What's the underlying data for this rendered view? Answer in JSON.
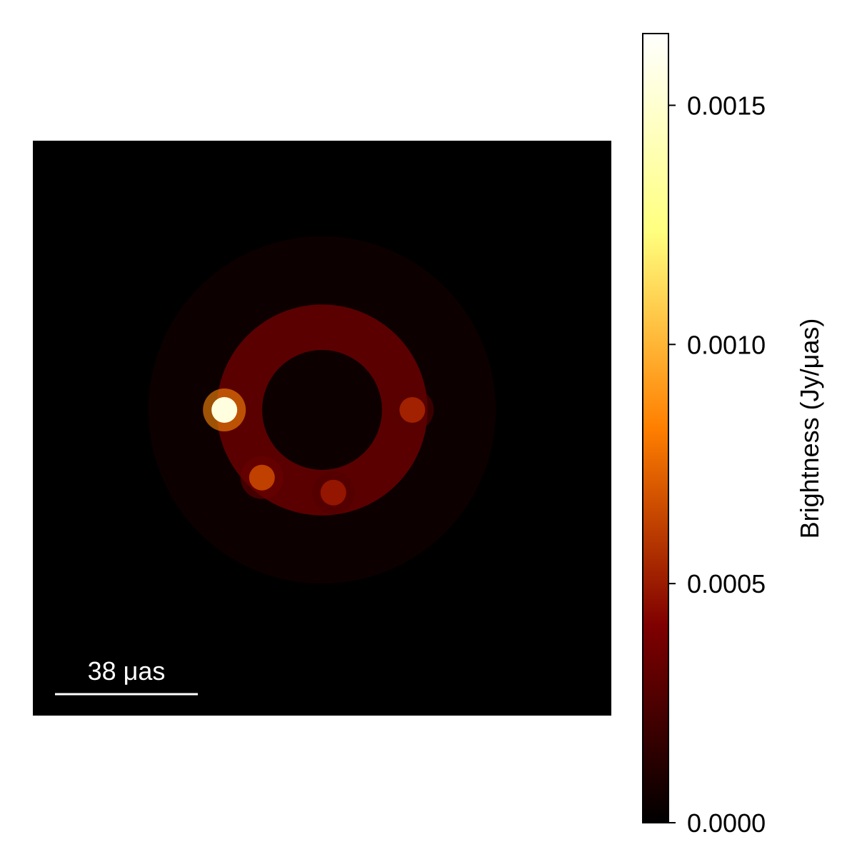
{
  "chart_data": {
    "type": "heatmap",
    "title": "",
    "colormap": "afmhot",
    "colors": {
      "background": "#000000",
      "scale_bar": "#ffffff",
      "axis": "#000000"
    },
    "image": {
      "description_free": true,
      "ring": {
        "center_x": 0.0,
        "center_y": 0.0,
        "radius_uas": 22,
        "peak_brightness": 0.00038
      },
      "hotspots": [
        {
          "x_uas": -26,
          "y_uas": 0,
          "brightness": 0.00155
        },
        {
          "x_uas": 24,
          "y_uas": 0,
          "brightness": 0.00052
        },
        {
          "x_uas": -16,
          "y_uas": -18,
          "brightness": 0.00062
        },
        {
          "x_uas": 3,
          "y_uas": -22,
          "brightness": 0.00048
        }
      ]
    },
    "scale_bar": {
      "label": "38 μas",
      "length_uas": 38
    },
    "colorbar": {
      "label": "Brightness (Jy/μas)",
      "range": [
        0.0,
        0.00165
      ],
      "ticks": [
        {
          "value": 0.0,
          "label": "0.0000"
        },
        {
          "value": 0.0005,
          "label": "0.0005"
        },
        {
          "value": 0.001,
          "label": "0.0010"
        },
        {
          "value": 0.0015,
          "label": "0.0015"
        }
      ]
    }
  }
}
